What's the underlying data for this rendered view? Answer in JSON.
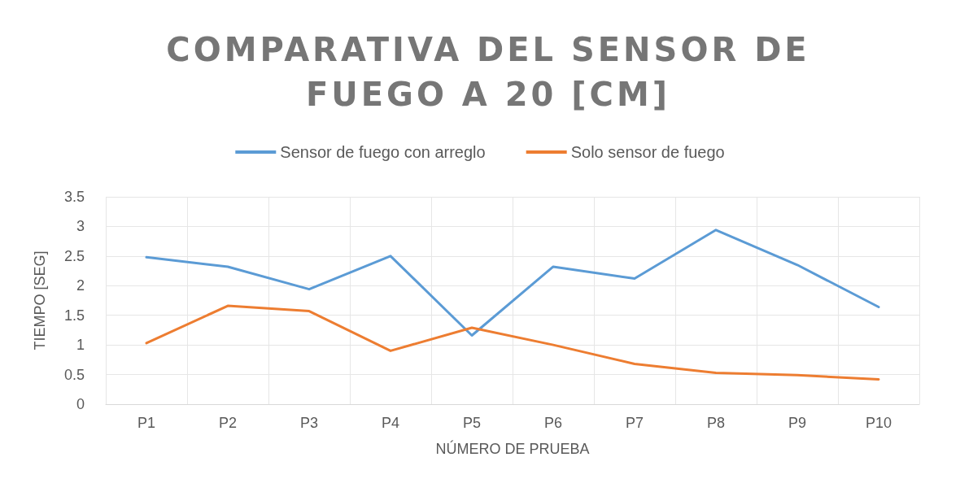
{
  "chart_data": {
    "type": "line",
    "title": "COMPARATIVA DEL SENSOR DE FUEGO A 20 [CM]",
    "xlabel": "NÚMERO DE PRUEBA",
    "ylabel": "TIEMPO [SEG]",
    "categories": [
      "P1",
      "P2",
      "P3",
      "P4",
      "P5",
      "P6",
      "P7",
      "P8",
      "P9",
      "P10"
    ],
    "series": [
      {
        "name": "Sensor de fuego con arreglo",
        "color": "#5b9bd5",
        "values": [
          2.48,
          2.32,
          1.94,
          2.5,
          1.16,
          2.32,
          2.12,
          2.94,
          2.35,
          1.64
        ]
      },
      {
        "name": "Solo sensor de fuego",
        "color": "#ed7d31",
        "values": [
          1.03,
          1.66,
          1.57,
          0.9,
          1.29,
          1.0,
          0.68,
          0.53,
          0.49,
          0.42
        ]
      }
    ],
    "ylim": [
      0,
      3.5
    ],
    "yticks": [
      0,
      0.5,
      1,
      1.5,
      2,
      2.5,
      3,
      3.5
    ],
    "grid": true,
    "legend": "top",
    "marker": "none",
    "line_style": "solid"
  }
}
